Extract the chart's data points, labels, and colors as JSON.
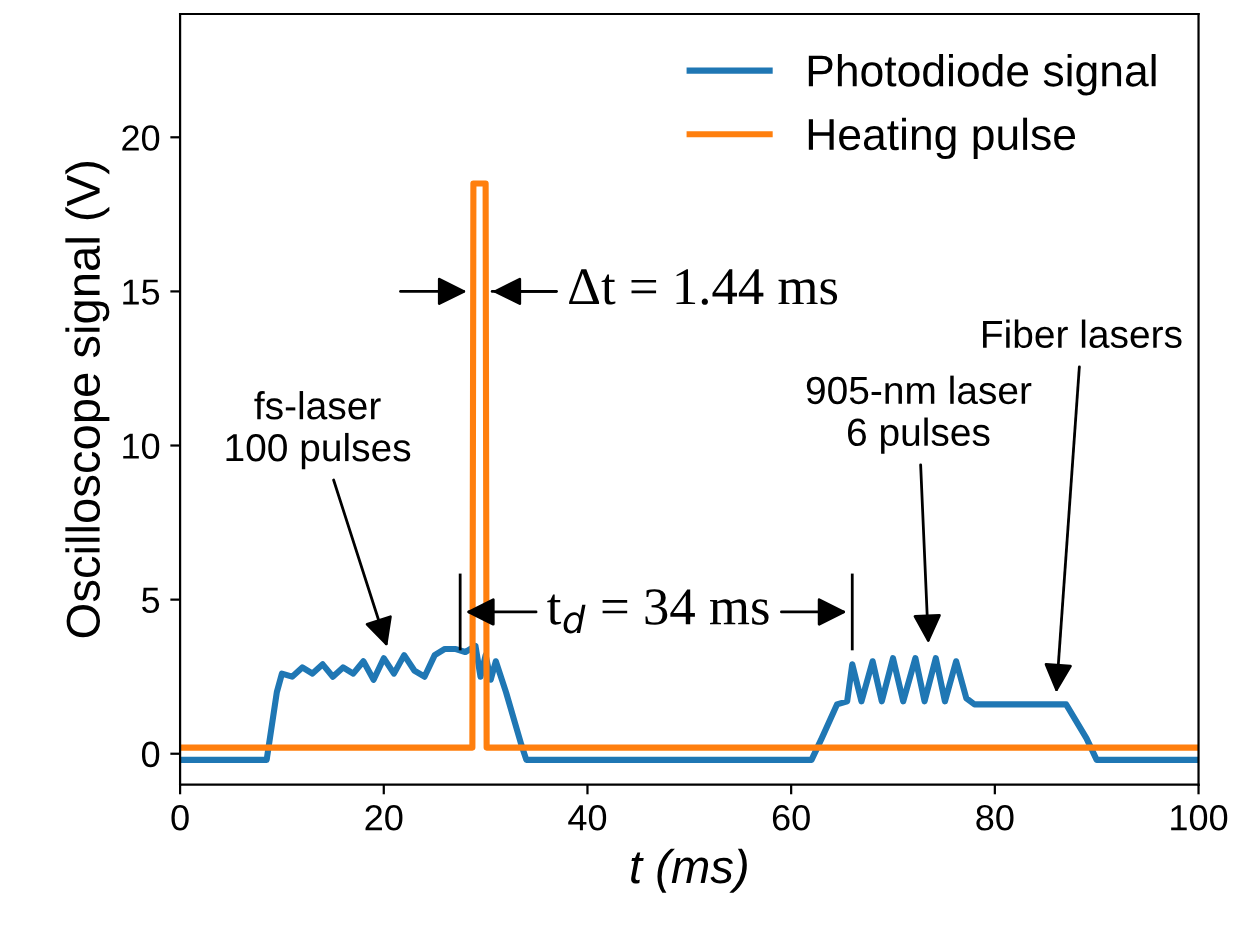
{
  "chart_data": {
    "type": "line",
    "xlabel": "t (ms)",
    "ylabel": "Oscilloscope signal (V)",
    "xlim": [
      0,
      100
    ],
    "ylim": [
      -1,
      24
    ],
    "xticks": [
      0,
      20,
      40,
      60,
      80,
      100
    ],
    "yticks": [
      0,
      5,
      10,
      15,
      20
    ],
    "grid": false,
    "legend": "top right",
    "marker": "none",
    "line_style": "solid",
    "series": [
      {
        "name": "Photodiode signal",
        "color": "#1f77b4",
        "x": [
          0,
          8.5,
          9.5,
          10,
          11,
          12,
          13,
          14,
          15,
          16,
          17,
          18,
          19,
          20,
          21,
          22,
          23,
          24,
          25,
          26,
          27,
          28,
          29,
          29.5,
          30,
          30.5,
          31,
          32,
          33.5,
          34,
          62,
          63,
          64.5,
          65.5,
          66,
          66.9,
          68,
          68.9,
          70,
          71,
          72.2,
          73.1,
          74.2,
          75.1,
          76.2,
          77.2,
          78,
          82,
          87,
          89,
          90,
          100
        ],
        "values": [
          -0.2,
          -0.2,
          2.0,
          2.6,
          2.5,
          2.8,
          2.6,
          2.9,
          2.5,
          2.8,
          2.6,
          3.0,
          2.4,
          3.1,
          2.6,
          3.2,
          2.7,
          2.5,
          3.2,
          3.4,
          3.4,
          3.3,
          3.5,
          2.5,
          3.2,
          2.4,
          3.0,
          2.0,
          0.3,
          -0.2,
          -0.2,
          0.5,
          1.6,
          1.7,
          2.9,
          1.7,
          3.0,
          1.7,
          3.1,
          1.7,
          3.1,
          1.7,
          3.1,
          1.7,
          3.0,
          1.8,
          1.6,
          1.6,
          1.6,
          0.5,
          -0.2,
          -0.2
        ]
      },
      {
        "name": "Heating pulse",
        "color": "#ff7f0e",
        "x": [
          0,
          28.7,
          28.8,
          30.0,
          30.1,
          100
        ],
        "values": [
          0.2,
          0.2,
          18.5,
          18.5,
          0.2,
          0.2
        ]
      }
    ],
    "annotations": [
      {
        "text": "fs-laser\n100 pulses",
        "x": 20.5,
        "y": 3.3
      },
      {
        "text": "905-nm laser\n6 pulses",
        "x": 73.5,
        "y": 3.4
      },
      {
        "text": "Fiber lasers",
        "x": 86,
        "y": 1.8
      },
      {
        "text": "Δt = 1.44 ms",
        "x": 30.1,
        "y": 15
      },
      "t$_{d}$ = 34 ms"
    ]
  }
}
